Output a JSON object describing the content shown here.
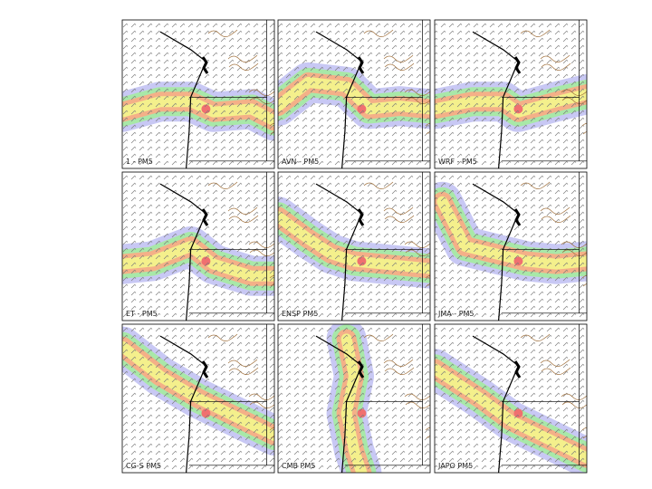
{
  "panels": [
    {
      "label": "1 - PM5"
    },
    {
      "label": "AVN - PM5"
    },
    {
      "label": "WRF - PM5"
    },
    {
      "label": "ET - PM5"
    },
    {
      "label": "ENSP PM5"
    },
    {
      "label": "JMA - PM5"
    },
    {
      "label": "CG-S PM5"
    },
    {
      "label": "CMB PM5"
    },
    {
      "label": "JAPO PM5"
    }
  ]
}
